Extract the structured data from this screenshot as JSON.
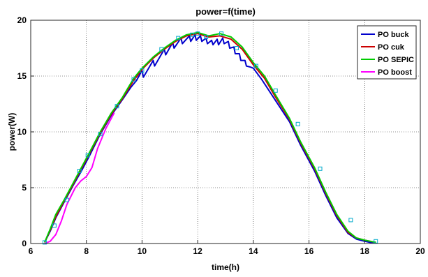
{
  "chart_data": {
    "type": "line",
    "title": "power=f(time)",
    "xlabel": "time(h)",
    "ylabel": "power(W)",
    "xlim": [
      6,
      20
    ],
    "ylim": [
      0,
      20
    ],
    "xticks": [
      6,
      8,
      10,
      12,
      14,
      16,
      18,
      20
    ],
    "yticks": [
      0,
      5,
      10,
      15,
      20
    ],
    "grid": true,
    "legend_position": "top-right",
    "series": [
      {
        "name": "PO buck",
        "color": "#0000cc",
        "x": [
          6.5,
          6.7,
          6.9,
          7.2,
          7.5,
          7.8,
          8.1,
          8.5,
          8.9,
          9.3,
          9.6,
          9.8,
          10.0,
          10.05,
          10.4,
          10.45,
          10.8,
          10.85,
          11.1,
          11.15,
          11.4,
          11.45,
          11.7,
          11.75,
          11.9,
          11.95,
          12.1,
          12.15,
          12.3,
          12.35,
          12.5,
          12.55,
          12.7,
          12.75,
          12.9,
          12.95,
          13.1,
          13.15,
          13.3,
          13.35,
          13.5,
          13.55,
          13.7,
          13.75,
          13.9,
          14.0,
          14.3,
          14.8,
          15.3,
          15.7,
          16.2,
          16.6,
          17.0,
          17.4,
          17.7,
          18.0,
          18.2,
          18.4
        ],
        "y": [
          0.1,
          1.1,
          2.3,
          3.7,
          5.1,
          6.4,
          7.8,
          9.8,
          11.5,
          12.9,
          14.0,
          14.6,
          15.5,
          14.9,
          16.4,
          15.9,
          17.4,
          16.9,
          18.0,
          17.5,
          18.4,
          17.9,
          18.6,
          18.1,
          18.7,
          18.2,
          18.6,
          18.1,
          18.4,
          17.9,
          18.2,
          17.8,
          18.3,
          17.8,
          18.4,
          17.9,
          18.1,
          17.5,
          17.6,
          17.0,
          17.0,
          16.4,
          16.4,
          15.9,
          15.8,
          15.7,
          14.7,
          12.8,
          10.9,
          8.8,
          6.5,
          4.3,
          2.3,
          0.9,
          0.4,
          0.2,
          0.1,
          0.1
        ]
      },
      {
        "name": "PO cuk",
        "color": "#cc0000",
        "x": [
          6.5,
          6.7,
          6.9,
          7.2,
          7.5,
          7.8,
          8.1,
          8.5,
          8.9,
          9.3,
          9.7,
          10.0,
          10.4,
          10.8,
          11.2,
          11.6,
          12.0,
          12.4,
          12.8,
          13.2,
          13.6,
          14.0,
          14.4,
          14.8,
          15.3,
          15.7,
          16.2,
          16.6,
          17.0,
          17.4,
          17.7,
          18.0,
          18.2,
          18.4
        ],
        "y": [
          0.1,
          1.2,
          2.4,
          3.8,
          5.2,
          6.6,
          8.0,
          9.9,
          11.6,
          13.0,
          14.6,
          15.6,
          16.6,
          17.4,
          18.1,
          18.6,
          18.8,
          18.5,
          18.6,
          18.3,
          17.4,
          16.0,
          14.8,
          13.1,
          11.1,
          9.0,
          6.7,
          4.5,
          2.5,
          1.0,
          0.5,
          0.3,
          0.2,
          0.1
        ]
      },
      {
        "name": "PO SEPIC",
        "color": "#00cc00",
        "x": [
          6.5,
          6.7,
          6.9,
          7.2,
          7.5,
          7.8,
          8.1,
          8.5,
          8.9,
          9.3,
          9.7,
          10.0,
          10.4,
          10.8,
          11.2,
          11.6,
          12.0,
          12.4,
          12.8,
          13.2,
          13.6,
          14.0,
          14.4,
          14.8,
          15.3,
          15.7,
          16.2,
          16.6,
          17.0,
          17.4,
          17.7,
          18.0,
          18.2,
          18.4
        ],
        "y": [
          0.1,
          1.3,
          2.6,
          3.9,
          5.3,
          6.7,
          8.1,
          10.0,
          11.7,
          13.1,
          14.8,
          15.7,
          16.7,
          17.5,
          18.2,
          18.7,
          18.9,
          18.6,
          18.8,
          18.5,
          17.6,
          16.2,
          15.0,
          13.3,
          11.2,
          9.1,
          6.8,
          4.6,
          2.6,
          1.1,
          0.5,
          0.3,
          0.2,
          0.1
        ]
      },
      {
        "name": "PO boost",
        "color": "#ff00ff",
        "x": [
          6.5,
          6.7,
          6.9,
          7.1,
          7.3,
          7.6,
          7.8,
          8.0,
          8.2,
          8.4,
          8.7,
          9.0
        ],
        "y": [
          0.0,
          0.2,
          0.8,
          2.0,
          3.5,
          5.0,
          5.6,
          6.0,
          6.8,
          8.5,
          10.3,
          11.7
        ]
      }
    ],
    "markers": {
      "color": "#00aacc",
      "x": [
        6.5,
        6.85,
        7.3,
        7.75,
        8.05,
        8.5,
        9.1,
        9.7,
        10.0,
        10.7,
        11.3,
        11.8,
        12.0,
        12.3,
        12.85,
        13.4,
        14.1,
        14.8,
        15.6,
        16.4,
        17.5,
        18.4
      ],
      "y": [
        0.1,
        1.6,
        3.9,
        6.5,
        7.9,
        9.8,
        12.3,
        14.7,
        15.5,
        17.4,
        18.4,
        18.7,
        18.8,
        18.5,
        18.8,
        17.5,
        15.9,
        13.7,
        10.7,
        6.7,
        2.1,
        0.2
      ]
    }
  }
}
